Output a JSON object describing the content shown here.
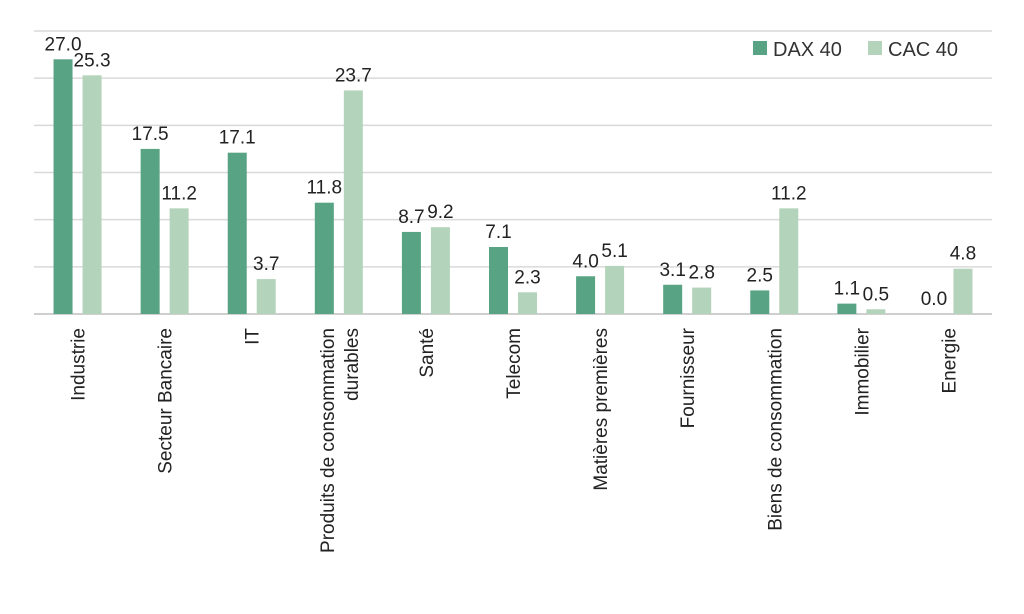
{
  "chart_data": {
    "type": "bar",
    "title": "",
    "xlabel": "",
    "ylabel": "",
    "ylim": [
      0,
      27
    ],
    "grid": true,
    "legend": "top-right",
    "categories": [
      [
        "Industrie"
      ],
      [
        "Secteur Bancaire"
      ],
      [
        "IT"
      ],
      [
        "Produits de consommation",
        "durables"
      ],
      [
        "Santé"
      ],
      [
        "Telecom"
      ],
      [
        "Matières premières"
      ],
      [
        "Fournisseur"
      ],
      [
        "Biens de consommation"
      ],
      [
        "Immobilier"
      ],
      [
        "Energie"
      ]
    ],
    "series": [
      {
        "name": "DAX 40",
        "color": "#57a383",
        "values": [
          27.0,
          17.5,
          17.1,
          11.8,
          8.7,
          7.1,
          4.0,
          3.1,
          2.5,
          1.1,
          0.0
        ],
        "labels": [
          "27.0",
          "17.5",
          "17.1",
          "11.8",
          "8.7",
          "7.1",
          "4.0",
          "3.1",
          "2.5",
          "1.1",
          "0.0"
        ]
      },
      {
        "name": "CAC 40",
        "color": "#b3d3ba",
        "values": [
          25.3,
          11.2,
          3.7,
          23.7,
          9.2,
          2.3,
          5.1,
          2.8,
          11.2,
          0.5,
          4.8
        ],
        "labels": [
          "25.3",
          "11.2",
          "3.7",
          "23.7",
          "9.2",
          "2.3",
          "5.1",
          "2.8",
          "11.2",
          "0.5",
          "4.8"
        ]
      }
    ]
  }
}
